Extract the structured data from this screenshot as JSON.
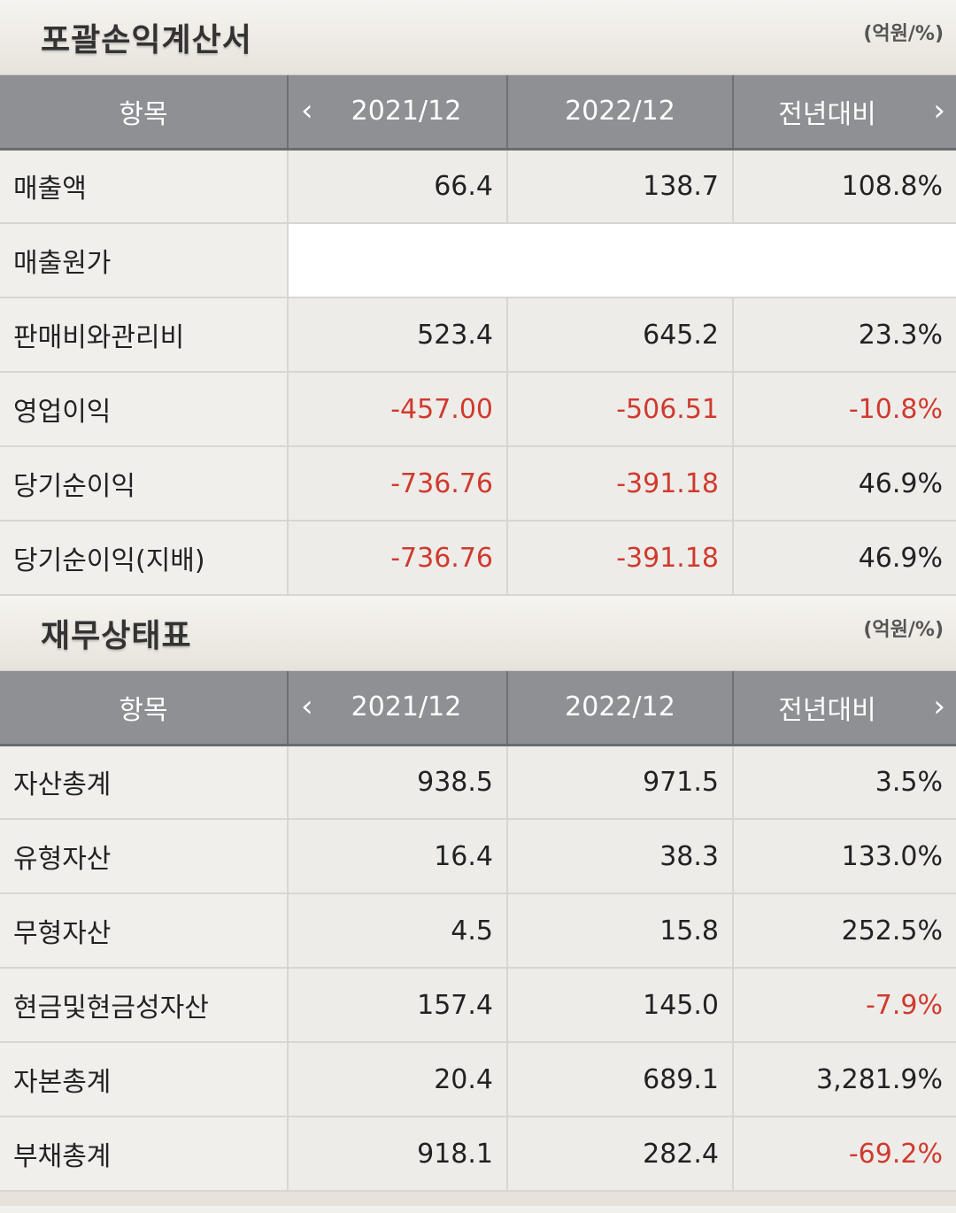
{
  "income": {
    "title": "포괄손익계산서",
    "unit": "(억원/%)",
    "headers": {
      "item": "항목",
      "prev": "2021/12",
      "curr": "2022/12",
      "cmp": "전년대비",
      "left_arrow": "‹",
      "right_arrow": "›"
    },
    "rows": [
      {
        "label": "매출액",
        "prev": "66.4",
        "curr": "138.7",
        "cmp": "108.8%"
      },
      {
        "label": "매출원가",
        "prev": "",
        "curr": "",
        "cmp": ""
      },
      {
        "label": "판매비와관리비",
        "prev": "523.4",
        "curr": "645.2",
        "cmp": "23.3%"
      },
      {
        "label": "영업이익",
        "prev": "-457.00",
        "curr": "-506.51",
        "cmp": "-10.8%"
      },
      {
        "label": "당기순이익",
        "prev": "-736.76",
        "curr": "-391.18",
        "cmp": "46.9%"
      },
      {
        "label": "당기순이익(지배)",
        "prev": "-736.76",
        "curr": "-391.18",
        "cmp": "46.9%"
      }
    ]
  },
  "balance": {
    "title": "재무상태표",
    "unit": "(억원/%)",
    "headers": {
      "item": "항목",
      "prev": "2021/12",
      "curr": "2022/12",
      "cmp": "전년대비",
      "left_arrow": "‹",
      "right_arrow": "›"
    },
    "rows": [
      {
        "label": "자산총계",
        "prev": "938.5",
        "curr": "971.5",
        "cmp": "3.5%"
      },
      {
        "label": "유형자산",
        "prev": "16.4",
        "curr": "38.3",
        "cmp": "133.0%"
      },
      {
        "label": "무형자산",
        "prev": "4.5",
        "curr": "15.8",
        "cmp": "252.5%"
      },
      {
        "label": "현금및현금성자산",
        "prev": "157.4",
        "curr": "145.0",
        "cmp": "-7.9%"
      },
      {
        "label": "자본총계",
        "prev": "20.4",
        "curr": "689.1",
        "cmp": "3,281.9%"
      },
      {
        "label": "부채총계",
        "prev": "918.1",
        "curr": "282.4",
        "cmp": "-69.2%"
      }
    ]
  },
  "colors": {
    "negative": "#d03a2e",
    "header_bg": "#8f9094"
  }
}
